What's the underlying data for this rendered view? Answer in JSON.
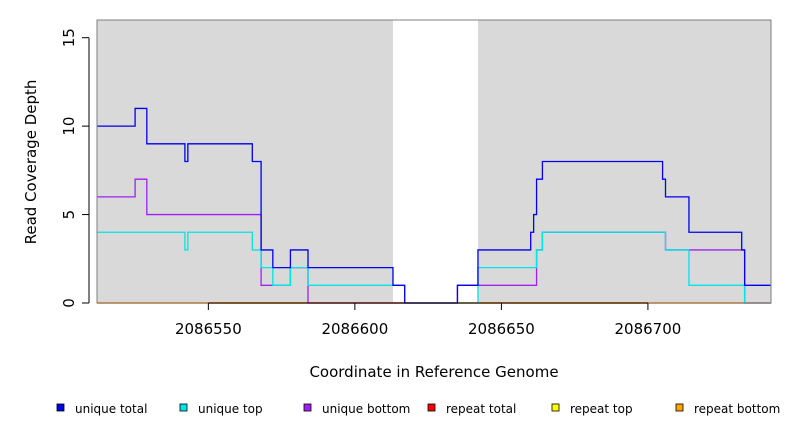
{
  "chart_data": {
    "type": "line",
    "title": "",
    "xlabel": "Coordinate in Reference Genome",
    "ylabel": "Read Coverage Depth",
    "xlim": [
      2086512,
      2086742
    ],
    "ylim": [
      0,
      16
    ],
    "xticks": [
      2086550,
      2086600,
      2086650,
      2086700
    ],
    "xtick_labels": [
      "2086550",
      "2086600",
      "2086650",
      "2086700"
    ],
    "yticks": [
      0,
      5,
      10,
      15
    ],
    "ytick_labels": [
      "0",
      "5",
      "10",
      "15"
    ],
    "shaded_regions": [
      [
        2086512,
        2086613
      ],
      [
        2086642,
        2086742
      ]
    ],
    "shade_color": "#d9d9d9",
    "legend_position": "bottom",
    "series": [
      {
        "name": "unique total",
        "color": "#0000ee",
        "x": [
          2086512,
          2086525,
          2086529,
          2086542,
          2086543,
          2086565,
          2086568,
          2086572,
          2086578,
          2086584,
          2086613,
          2086617,
          2086635,
          2086642,
          2086660,
          2086661,
          2086662,
          2086664,
          2086705,
          2086706,
          2086714,
          2086732,
          2086733,
          2086742
        ],
        "y": [
          10,
          11,
          9,
          8,
          9,
          8,
          3,
          2,
          3,
          2,
          1,
          0,
          1,
          3,
          4,
          5,
          7,
          8,
          7,
          6,
          4,
          3,
          1,
          1
        ]
      },
      {
        "name": "unique top",
        "color": "#00e5e5",
        "x": [
          2086512,
          2086542,
          2086543,
          2086565,
          2086568,
          2086572,
          2086578,
          2086584,
          2086613,
          2086617,
          2086635,
          2086642,
          2086660,
          2086662,
          2086664,
          2086705,
          2086706,
          2086714,
          2086732,
          2086733,
          2086742
        ],
        "y": [
          4,
          3,
          4,
          3,
          2,
          1,
          2,
          1,
          1,
          0,
          0,
          2,
          2,
          3,
          4,
          4,
          3,
          1,
          1,
          0,
          0
        ]
      },
      {
        "name": "unique bottom",
        "color": "#a020f0",
        "x": [
          2086512,
          2086525,
          2086529,
          2086568,
          2086578,
          2086584,
          2086613,
          2086617,
          2086635,
          2086642,
          2086662,
          2086664,
          2086705,
          2086706,
          2086714,
          2086732,
          2086733,
          2086742
        ],
        "y": [
          6,
          7,
          5,
          1,
          2,
          0,
          0,
          0,
          1,
          1,
          3,
          4,
          4,
          3,
          3,
          3,
          0,
          0
        ]
      },
      {
        "name": "repeat total",
        "color": "#ff0000",
        "x": [
          2086512,
          2086742
        ],
        "y": [
          0,
          0
        ]
      },
      {
        "name": "repeat top",
        "color": "#ffff00",
        "x": [
          2086512,
          2086742
        ],
        "y": [
          0,
          0
        ]
      },
      {
        "name": "repeat bottom",
        "color": "#ffa500",
        "x": [
          2086512,
          2086742
        ],
        "y": [
          0,
          0
        ]
      }
    ]
  }
}
